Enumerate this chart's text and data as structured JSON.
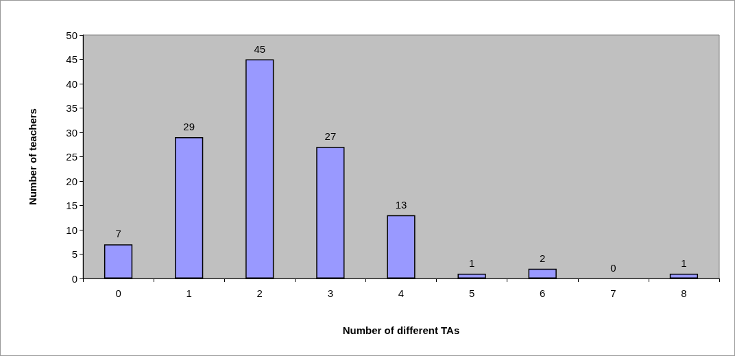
{
  "chart_data": {
    "type": "bar",
    "xlabel": "Number of different TAs",
    "ylabel": "Number of teachers",
    "categories": [
      "0",
      "1",
      "2",
      "3",
      "4",
      "5",
      "6",
      "7",
      "8"
    ],
    "values": [
      7,
      29,
      45,
      27,
      13,
      1,
      2,
      0,
      1
    ],
    "color": "#9999ff",
    "ylim": [
      0,
      50
    ],
    "yticks": [
      0,
      5,
      10,
      15,
      20,
      25,
      30,
      35,
      40,
      45,
      50
    ],
    "grid": false,
    "data_labels": true
  }
}
